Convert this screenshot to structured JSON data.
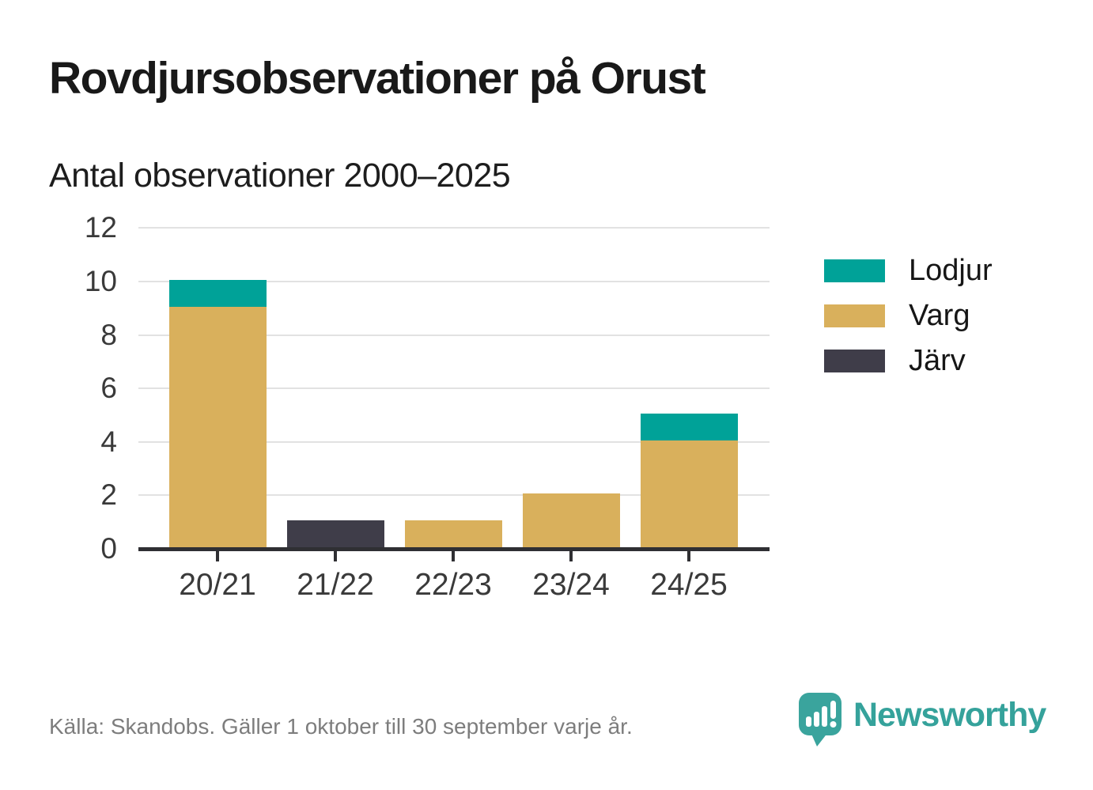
{
  "header": {
    "title": "Rovdjursobservationer på Orust",
    "subtitle": "Antal observationer 2000–2025"
  },
  "chart_data": {
    "type": "bar",
    "stacked": true,
    "title": "Rovdjursobservationer på Orust",
    "subtitle": "Antal observationer 2000–2025",
    "categories": [
      "20/21",
      "21/22",
      "22/23",
      "23/24",
      "24/25"
    ],
    "series": [
      {
        "name": "Lodjur",
        "color": "#00a298",
        "values": [
          1,
          0,
          0,
          0,
          1
        ]
      },
      {
        "name": "Varg",
        "color": "#d9b05c",
        "values": [
          9,
          0,
          1,
          2,
          4
        ]
      },
      {
        "name": "Järv",
        "color": "#3f3d49",
        "values": [
          0,
          1,
          0,
          0,
          0
        ]
      }
    ],
    "stack_order_bottom_to_top": [
      "Järv",
      "Varg",
      "Lodjur"
    ],
    "xlabel": "",
    "ylabel": "",
    "ylim": [
      0,
      12
    ],
    "yticks": [
      0,
      2,
      4,
      6,
      8,
      10,
      12
    ],
    "grid": true,
    "legend_position": "right"
  },
  "footer": {
    "source": "Källa: Skandobs. Gäller 1 oktober till 30 september varje år.",
    "brand": "Newsworthy"
  },
  "colors": {
    "axis": "#2f2f33",
    "grid": "#e2e2e2",
    "tick_label": "#3a3a3a",
    "brand_teal": "#35a29b"
  }
}
